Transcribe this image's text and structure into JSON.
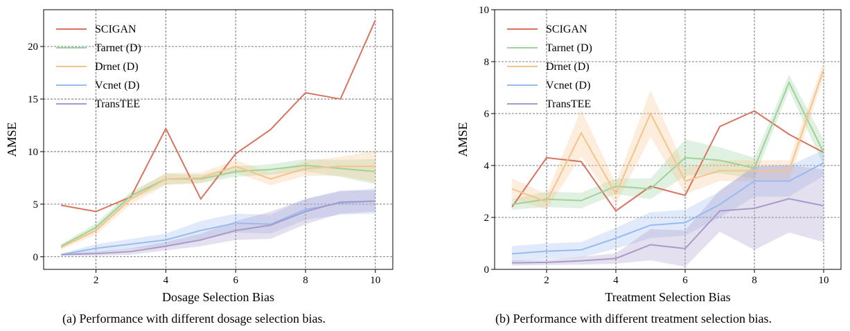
{
  "series_colors": {
    "SCIGAN": "#d7735e",
    "Tarnet (D)": "#9dd29a",
    "Drnet (D)": "#f6c38c",
    "Vcnet (D)": "#98bbef",
    "TransTEE": "#a899c9"
  },
  "chart_data": [
    {
      "type": "line",
      "xlabel": "Dosage Selection Bias",
      "ylabel": "AMSE",
      "caption": "(a) Performance with different dosage selection bias.",
      "xlim": [
        0.5,
        10.5
      ],
      "ylim": [
        -1.2,
        23.5
      ],
      "xticks": [
        2,
        4,
        6,
        8,
        10
      ],
      "yticks": [
        0,
        5,
        10,
        15,
        20
      ],
      "grid": true,
      "legend_position": "top-left",
      "x": [
        1,
        2,
        3,
        4,
        5,
        6,
        7,
        8,
        9,
        10
      ],
      "series": [
        {
          "name": "SCIGAN",
          "values": [
            4.9,
            4.3,
            5.7,
            12.2,
            5.5,
            9.8,
            12.1,
            15.6,
            15.0,
            22.5
          ],
          "band": 0
        },
        {
          "name": "Tarnet (D)",
          "values": [
            1.0,
            2.8,
            5.8,
            7.4,
            7.4,
            8.1,
            8.3,
            8.7,
            8.4,
            8.1
          ],
          "band": [
            0.2,
            0.4,
            0.4,
            0.5,
            0.4,
            0.5,
            0.5,
            0.6,
            0.8,
            1.2
          ]
        },
        {
          "name": "Drnet (D)",
          "values": [
            0.9,
            2.5,
            5.5,
            7.4,
            7.5,
            8.6,
            7.4,
            8.4,
            8.6,
            8.6
          ],
          "band": [
            0.2,
            0.4,
            0.5,
            0.6,
            0.5,
            0.6,
            0.6,
            0.7,
            0.9,
            1.5
          ]
        },
        {
          "name": "Vcnet (D)",
          "values": [
            0.2,
            0.8,
            1.2,
            1.6,
            2.5,
            3.2,
            3.1,
            4.5,
            5.1,
            5.3
          ],
          "band": [
            0.1,
            0.4,
            0.5,
            0.6,
            0.9,
            0.9,
            0.9,
            1.0,
            1.1,
            1.2
          ]
        },
        {
          "name": "TransTEE",
          "values": [
            0.2,
            0.3,
            0.5,
            1.0,
            1.6,
            2.5,
            3.0,
            4.3,
            5.2,
            5.3
          ],
          "band": [
            0.1,
            0.2,
            0.3,
            0.4,
            0.6,
            0.9,
            1.3,
            1.2,
            1.1,
            1.0
          ]
        }
      ]
    },
    {
      "type": "line",
      "xlabel": "Treatment Selection Bias",
      "ylabel": "AMSE",
      "caption": "(b) Performance with different treatment selection bias.",
      "xlim": [
        0.5,
        10.5
      ],
      "ylim": [
        0,
        10
      ],
      "xticks": [
        2,
        4,
        6,
        8,
        10
      ],
      "yticks": [
        0,
        2,
        4,
        6,
        8,
        10
      ],
      "grid": true,
      "legend_position": "top-left",
      "x": [
        1,
        2,
        3,
        4,
        5,
        6,
        7,
        8,
        9,
        10
      ],
      "series": [
        {
          "name": "SCIGAN",
          "values": [
            2.4,
            4.3,
            4.15,
            2.25,
            3.2,
            2.85,
            5.5,
            6.1,
            5.2,
            4.5
          ],
          "band": 0
        },
        {
          "name": "Tarnet (D)",
          "values": [
            2.5,
            2.7,
            2.65,
            3.2,
            3.1,
            4.3,
            4.2,
            3.9,
            7.2,
            4.5
          ],
          "band": [
            0.2,
            0.3,
            0.3,
            0.3,
            0.4,
            0.7,
            0.5,
            0.4,
            0.3,
            0.5
          ]
        },
        {
          "name": "Drnet (D)",
          "values": [
            3.1,
            2.6,
            5.25,
            2.9,
            6.0,
            3.4,
            3.8,
            3.8,
            3.8,
            7.7
          ],
          "band": [
            0.4,
            0.3,
            0.9,
            0.4,
            0.9,
            0.5,
            0.4,
            0.4,
            0.4,
            0.3
          ]
        },
        {
          "name": "Vcnet (D)",
          "values": [
            0.6,
            0.7,
            0.75,
            1.2,
            1.7,
            1.8,
            2.5,
            3.4,
            3.4,
            4.1
          ],
          "band": [
            0.3,
            0.3,
            0.3,
            0.4,
            0.5,
            0.5,
            0.5,
            0.6,
            0.6,
            0.5
          ]
        },
        {
          "name": "TransTEE",
          "values": [
            0.25,
            0.27,
            0.33,
            0.42,
            0.95,
            0.8,
            2.25,
            2.35,
            2.72,
            2.45
          ],
          "band": [
            0.1,
            0.1,
            0.15,
            0.2,
            0.6,
            0.7,
            0.8,
            1.6,
            1.3,
            1.4
          ]
        }
      ]
    }
  ]
}
